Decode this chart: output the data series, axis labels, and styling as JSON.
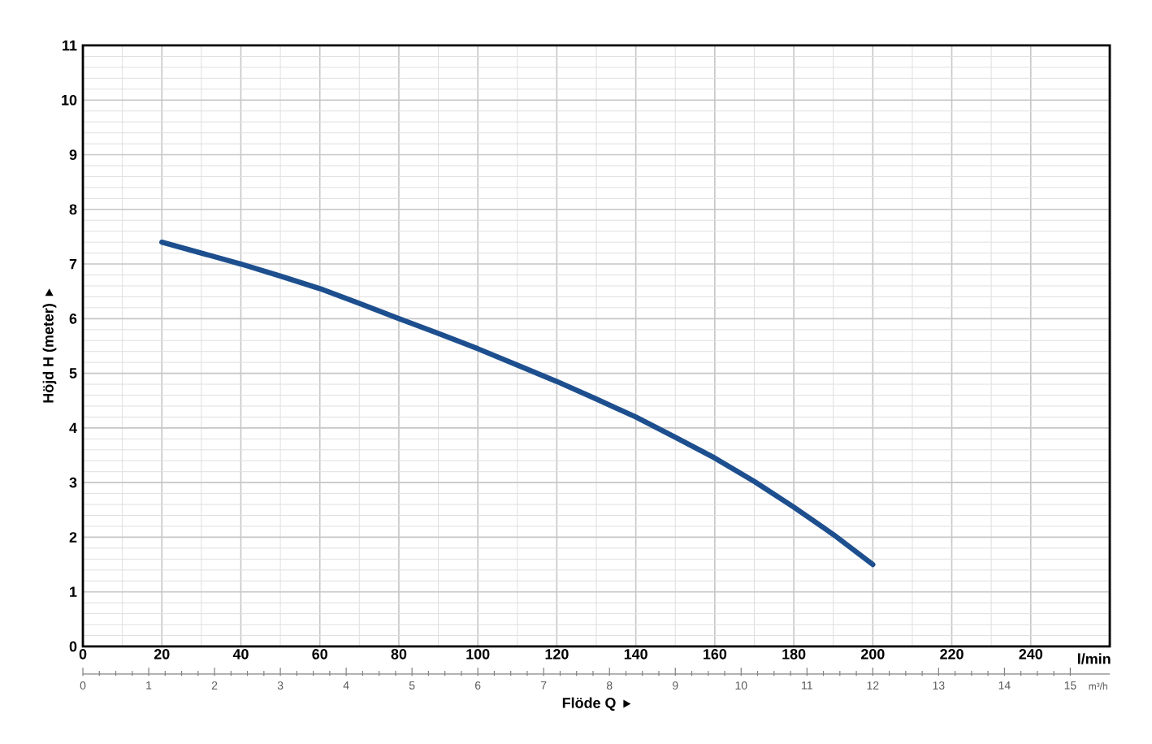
{
  "chart_data": {
    "type": "line",
    "xlabel": "Flöde Q",
    "ylabel": "Höjd H (meter)",
    "x": [
      20,
      30,
      40,
      50,
      60,
      70,
      80,
      90,
      100,
      110,
      120,
      130,
      140,
      150,
      160,
      170,
      180,
      190,
      200
    ],
    "series": [
      {
        "color": "#1d4f8f",
        "values": [
          7.4,
          7.2,
          7.0,
          6.78,
          6.55,
          6.28,
          6.0,
          5.73,
          5.45,
          5.15,
          4.85,
          4.53,
          4.2,
          3.83,
          3.45,
          3.02,
          2.55,
          2.05,
          1.5
        ]
      }
    ],
    "xlim": [
      0,
      260
    ],
    "xticks": [
      0,
      20,
      40,
      60,
      80,
      100,
      120,
      140,
      160,
      180,
      200,
      220,
      240
    ],
    "ylim": [
      0,
      11
    ],
    "yticks": [
      0,
      1,
      2,
      3,
      4,
      5,
      6,
      7,
      8,
      9,
      10,
      11
    ],
    "x2lim": [
      0,
      15.6
    ],
    "x2ticks": [
      0,
      1,
      2,
      3,
      4,
      5,
      6,
      7,
      8,
      9,
      10,
      11,
      12,
      13,
      14,
      15
    ],
    "grid": true,
    "marker": "none",
    "line_style": "solid",
    "annotations": [
      "l/min",
      "m³/h"
    ]
  }
}
